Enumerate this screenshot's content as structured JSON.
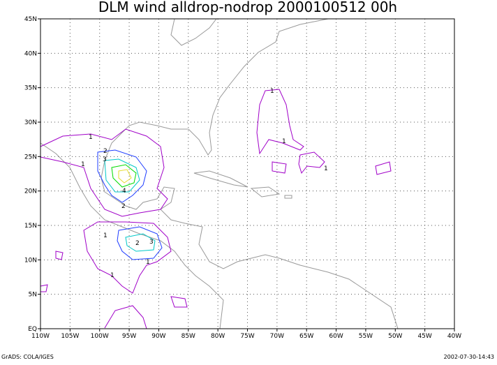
{
  "title": "DLM wind alldrop-nodrop 2000100512 00h",
  "footer": {
    "left": "GrADS: COLA/IGES",
    "right": "2002-07-30-14:43"
  },
  "map": {
    "lon_ticks": [
      "110W",
      "105W",
      "100W",
      "95W",
      "90W",
      "85W",
      "80W",
      "75W",
      "70W",
      "65W",
      "60W",
      "55W",
      "50W",
      "45W",
      "40W"
    ],
    "lat_ticks": [
      "EQ",
      "5N",
      "10N",
      "15N",
      "20N",
      "25N",
      "30N",
      "35N",
      "40N",
      "45N"
    ],
    "contour_labels": [
      "1",
      "1",
      "1",
      "1",
      "1",
      "1",
      "1",
      "1",
      "2",
      "2",
      "2",
      "3",
      "3",
      "4"
    ]
  }
}
